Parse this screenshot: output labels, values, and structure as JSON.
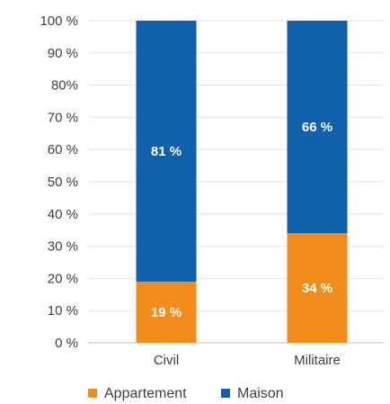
{
  "chart_data": {
    "type": "bar",
    "stacked": true,
    "categories": [
      "Civil",
      "Militaire"
    ],
    "series": [
      {
        "name": "Appartement",
        "values": [
          19,
          34
        ],
        "labels": [
          "19 %",
          "34 %"
        ],
        "color": "#F28C1A"
      },
      {
        "name": "Maison",
        "values": [
          81,
          66
        ],
        "labels": [
          "81 %",
          "66 %"
        ],
        "color": "#1060AC"
      }
    ],
    "yticks": [
      "0 %",
      "10 %",
      "20 %",
      "30 %",
      "40 %",
      "50 %",
      "60 %",
      "70 %",
      "80%",
      "90 %",
      "100 %"
    ],
    "ylim": [
      0,
      100
    ],
    "grid": true,
    "legend": "bottom"
  }
}
